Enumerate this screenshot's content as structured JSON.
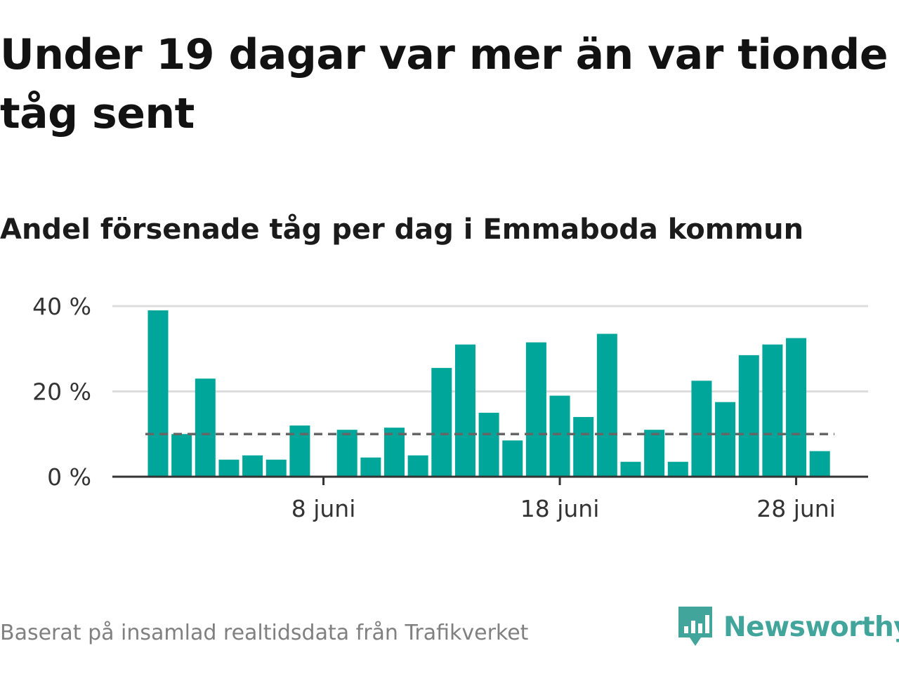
{
  "title": "Under 19 dagar var mer än var tionde tåg sent",
  "subtitle": "Andel försenade tåg per dag i Emmaboda kommun",
  "source": "Baserat på insamlad realtidsdata från Trafikverket",
  "logo": {
    "text": "Newsworthy",
    "icon": "newsworthy-logo-icon",
    "color": "#42a59b"
  },
  "chart_data": {
    "type": "bar",
    "x": [
      "1 juni",
      "2 juni",
      "3 juni",
      "4 juni",
      "5 juni",
      "6 juni",
      "7 juni",
      "8 juni",
      "9 juni",
      "10 juni",
      "11 juni",
      "12 juni",
      "13 juni",
      "14 juni",
      "15 juni",
      "16 juni",
      "17 juni",
      "18 juni",
      "19 juni",
      "20 juni",
      "21 juni",
      "22 juni",
      "23 juni",
      "24 juni",
      "25 juni",
      "26 juni",
      "27 juni",
      "28 juni",
      "29 juni",
      "30 juni"
    ],
    "values": [
      39,
      10,
      23,
      4,
      5,
      4,
      12,
      0,
      11,
      4.5,
      11.5,
      5,
      25.5,
      31,
      15,
      8.5,
      31.5,
      19,
      14,
      33.5,
      3.5,
      11,
      3.5,
      22.5,
      17.5,
      28.5,
      31,
      32.5,
      6,
      null
    ],
    "xticks": [
      "8 juni",
      "18 juni",
      "28 juni"
    ],
    "yticks": [
      "0 %",
      "20 %",
      "40 %"
    ],
    "ylim": [
      0,
      40
    ],
    "reference_line": {
      "value": 10,
      "style": "dashed",
      "color": "#666666"
    },
    "bar_color": "#00a69a",
    "grid": true
  }
}
